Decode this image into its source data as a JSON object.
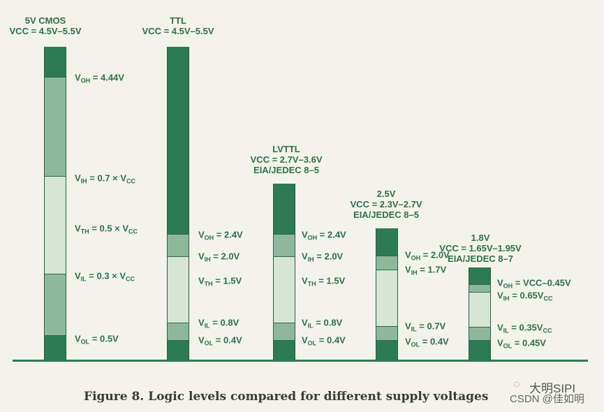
{
  "colors": {
    "dark": "#2e7a55",
    "mid": "#8fb89a",
    "light": "#d6e5d4"
  },
  "columns": [
    {
      "title": [
        "5V CMOS",
        "VCC = 4.5V–5.5V"
      ],
      "labels": [
        {
          "sub": "OH",
          "text": " = 4.44V"
        },
        {
          "sub": "IH",
          "text": " = 0.7 × V",
          "sub2": "CC"
        },
        {
          "sub": "TH",
          "text": " = 0.5 × V",
          "sub2": "CC"
        },
        {
          "sub": "IL",
          "text": " = 0.3 × V",
          "sub2": "CC"
        },
        {
          "sub": "OL",
          "text": " = 0.5V"
        }
      ]
    },
    {
      "title": [
        "TTL",
        "VCC = 4.5V–5.5V"
      ],
      "labels": [
        {
          "sub": "OH",
          "text": " = 2.4V"
        },
        {
          "sub": "IH",
          "text": " = 2.0V"
        },
        {
          "sub": "TH",
          "text": " = 1.5V"
        },
        {
          "sub": "IL",
          "text": " = 0.8V"
        },
        {
          "sub": "OL",
          "text": " = 0.4V"
        }
      ]
    },
    {
      "title": [
        "LVTTL",
        "VCC = 2.7V–3.6V",
        "EIA/JEDEC 8–5"
      ],
      "labels": [
        {
          "sub": "OH",
          "text": " = 2.4V"
        },
        {
          "sub": "IH",
          "text": " = 2.0V"
        },
        {
          "sub": "TH",
          "text": " = 1.5V"
        },
        {
          "sub": "IL",
          "text": " = 0.8V"
        },
        {
          "sub": "OL",
          "text": " = 0.4V"
        }
      ]
    },
    {
      "title": [
        "2.5V",
        "VCC = 2.3V–2.7V",
        "EIA/JEDEC 8–5"
      ],
      "labels": [
        {
          "sub": "OH",
          "text": " = 2.0V"
        },
        {
          "sub": "IH",
          "text": " = 1.7V"
        },
        {
          "sub": "IL",
          "text": " = 0.7V"
        },
        {
          "sub": "OL",
          "text": " = 0.4V"
        }
      ]
    },
    {
      "title": [
        "1.8V",
        "VCC = 1.65V–1.95V",
        "EIA/JEDEC 8–7"
      ],
      "labels": [
        {
          "sub": "OH",
          "text": " = VCC–0.45V"
        },
        {
          "sub": "IH",
          "text": " = 0.65V",
          "sub2": "CC"
        },
        {
          "sub": "IL",
          "text": " = 0.35V",
          "sub2": "CC"
        },
        {
          "sub": "OL",
          "text": " = 0.45V"
        }
      ]
    }
  ],
  "caption": "Figure 8. Logic levels compared for different supply voltages",
  "watermark": {
    "line1": "大明SIPI",
    "line2": "CSDN @佳如明"
  }
}
